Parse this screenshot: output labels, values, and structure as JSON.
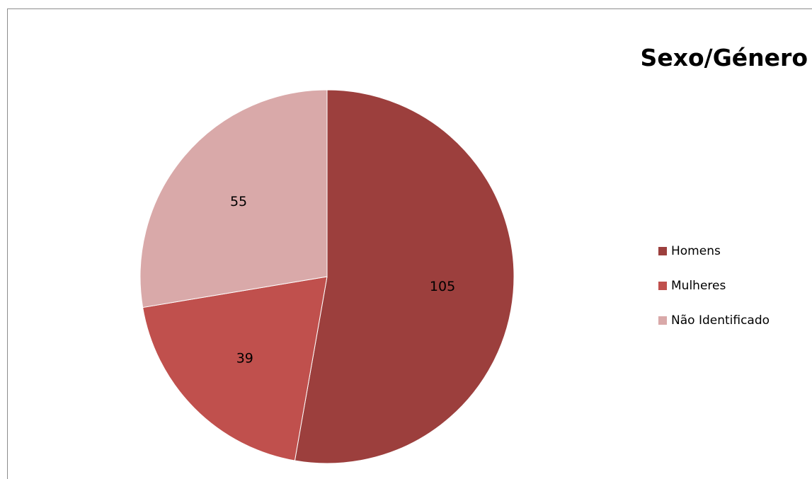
{
  "chart_data": {
    "type": "pie",
    "title": "Sexo/Género",
    "categories": [
      "Homens",
      "Mulheres",
      "Não Identificado"
    ],
    "values": [
      105,
      39,
      55
    ],
    "data_labels": [
      "105",
      "39",
      "55"
    ],
    "colors": [
      "#9c3f3d",
      "#c0504d",
      "#d9a9a9"
    ],
    "legend_position": "right",
    "start_angle": "top",
    "direction": "clockwise"
  }
}
